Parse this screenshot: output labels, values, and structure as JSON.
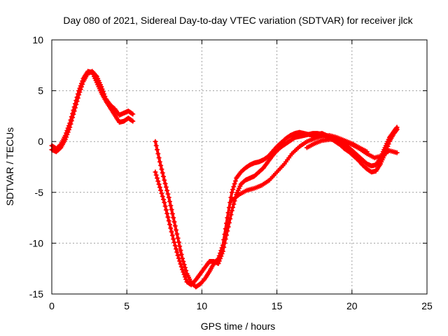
{
  "chart_data": {
    "type": "scatter",
    "title": "Day 080 of 2021, Sidereal Day-to-day VTEC variation (SDTVAR) for receiver jlck",
    "xlabel": "GPS time / hours",
    "ylabel": "SDTVAR / TECUs",
    "xlim": [
      0,
      25
    ],
    "ylim": [
      -15,
      10
    ],
    "x_ticks": [
      0,
      5,
      10,
      15,
      20,
      25
    ],
    "y_ticks": [
      -15,
      -10,
      -5,
      0,
      5,
      10
    ],
    "x_tick_labels": [
      "0",
      "5",
      "10",
      "15",
      "20",
      "25"
    ],
    "y_tick_labels": [
      "-15",
      "-10",
      "-5",
      "0",
      "5",
      "10"
    ],
    "grid": true,
    "marker": "plus",
    "color": "#ff0000",
    "series": [
      {
        "x": [
          0.0,
          0.3,
          0.6,
          0.9,
          1.2,
          1.5,
          1.8,
          2.1,
          2.4,
          2.7,
          3.0,
          3.3,
          3.6,
          3.9,
          4.2,
          4.5,
          4.8,
          5.1,
          5.4
        ],
        "y": [
          -0.4,
          -0.7,
          -0.3,
          0.6,
          1.8,
          3.4,
          5.0,
          6.2,
          6.9,
          6.8,
          5.8,
          4.8,
          4.0,
          3.3,
          2.6,
          1.9,
          2.0,
          2.3,
          2.0
        ]
      },
      {
        "x": [
          0.0,
          0.3,
          0.6,
          0.9,
          1.2,
          1.5,
          1.8,
          2.1,
          2.4,
          2.7,
          3.0,
          3.3,
          3.6,
          3.9,
          4.2,
          4.5,
          4.8,
          5.1,
          5.4
        ],
        "y": [
          -0.8,
          -1.0,
          -0.6,
          0.2,
          1.4,
          3.0,
          4.6,
          5.9,
          6.7,
          6.9,
          6.4,
          5.4,
          4.2,
          3.6,
          3.2,
          2.6,
          2.8,
          3.0,
          2.7
        ]
      },
      {
        "x": [
          6.9,
          7.2,
          7.5,
          7.8,
          8.1,
          8.4,
          8.7,
          9.0,
          9.3,
          9.6,
          9.9,
          10.2,
          10.5,
          10.8,
          11.1,
          11.4,
          11.7,
          12.0,
          12.3,
          12.6,
          12.9,
          13.2,
          13.5,
          13.8,
          14.1,
          14.4,
          14.7,
          15.0,
          15.3,
          15.6,
          15.9,
          16.2,
          16.5,
          16.8,
          17.1,
          17.4,
          17.7,
          18.0,
          18.3,
          18.6,
          18.9,
          19.2,
          19.5,
          19.8,
          20.1,
          20.4,
          20.7,
          21.0,
          21.3,
          21.6,
          21.9,
          22.2,
          22.5,
          22.8,
          23.0
        ],
        "y": [
          0.0,
          -2.0,
          -3.8,
          -5.5,
          -7.5,
          -9.5,
          -11.5,
          -13.0,
          -13.9,
          -14.3,
          -14.0,
          -13.5,
          -12.8,
          -12.0,
          -11.5,
          -10.2,
          -7.5,
          -5.0,
          -3.6,
          -3.0,
          -2.6,
          -2.3,
          -2.1,
          -2.0,
          -1.8,
          -1.5,
          -1.0,
          -0.5,
          -0.1,
          0.3,
          0.6,
          0.8,
          0.9,
          0.8,
          0.7,
          0.6,
          0.7,
          0.8,
          0.6,
          0.4,
          0.2,
          0.0,
          -0.3,
          -0.6,
          -1.0,
          -1.4,
          -1.8,
          -2.2,
          -2.4,
          -2.3,
          -1.6,
          -0.6,
          0.4,
          1.0,
          1.4
        ]
      },
      {
        "x": [
          6.9,
          7.2,
          7.5,
          7.8,
          8.1,
          8.4,
          8.7,
          9.0,
          9.3,
          9.6,
          9.9,
          10.2,
          10.5,
          10.8,
          11.1,
          11.4,
          11.7,
          12.0,
          12.3,
          12.6,
          12.9,
          13.2,
          13.5,
          13.8,
          14.1,
          14.4,
          14.7,
          15.0,
          15.3,
          15.6,
          15.9,
          16.2,
          16.5,
          16.8,
          17.1,
          17.4,
          17.7,
          18.0,
          18.3,
          18.6,
          18.9,
          19.2,
          19.5,
          19.8,
          20.1,
          20.4,
          20.7,
          21.0,
          21.3,
          21.6,
          21.9,
          22.2,
          22.5,
          22.8,
          23.0
        ],
        "y": [
          -3.0,
          -4.5,
          -6.0,
          -7.8,
          -9.6,
          -11.2,
          -12.6,
          -13.8,
          -14.1,
          -13.6,
          -13.0,
          -12.4,
          -11.8,
          -11.8,
          -12.0,
          -10.8,
          -8.8,
          -6.8,
          -5.2,
          -4.2,
          -3.8,
          -3.6,
          -3.4,
          -3.0,
          -2.6,
          -2.0,
          -1.4,
          -0.9,
          -0.5,
          -0.2,
          0.1,
          0.4,
          0.5,
          0.6,
          0.7,
          0.8,
          0.8,
          0.7,
          0.5,
          0.3,
          0.0,
          -0.3,
          -0.7,
          -1.0,
          -1.4,
          -1.8,
          -2.3,
          -2.7,
          -3.0,
          -2.9,
          -2.2,
          -1.2,
          0.0,
          0.8,
          1.2
        ]
      },
      {
        "x": [
          12.0,
          12.5,
          13.0,
          13.5,
          14.0,
          14.5,
          15.0,
          15.5,
          16.0,
          16.5,
          17.0,
          17.5,
          18.0,
          18.5,
          19.0,
          19.5,
          20.0,
          20.5,
          21.0
        ],
        "y": [
          -5.8,
          -5.2,
          -4.8,
          -4.6,
          -4.3,
          -3.8,
          -3.0,
          -2.2,
          -1.2,
          -0.5,
          0.0,
          0.3,
          0.5,
          0.6,
          0.4,
          0.1,
          -0.2,
          -0.6,
          -1.0
        ]
      },
      {
        "x": [
          17.0,
          17.5,
          18.0,
          18.5,
          19.0,
          19.5,
          20.0,
          20.5,
          21.0,
          21.5,
          22.0,
          22.5,
          23.0
        ],
        "y": [
          -0.6,
          -0.2,
          0.1,
          0.2,
          0.2,
          0.0,
          -0.3,
          -0.7,
          -1.2,
          -1.6,
          -1.4,
          -0.9,
          -1.1
        ]
      }
    ]
  }
}
